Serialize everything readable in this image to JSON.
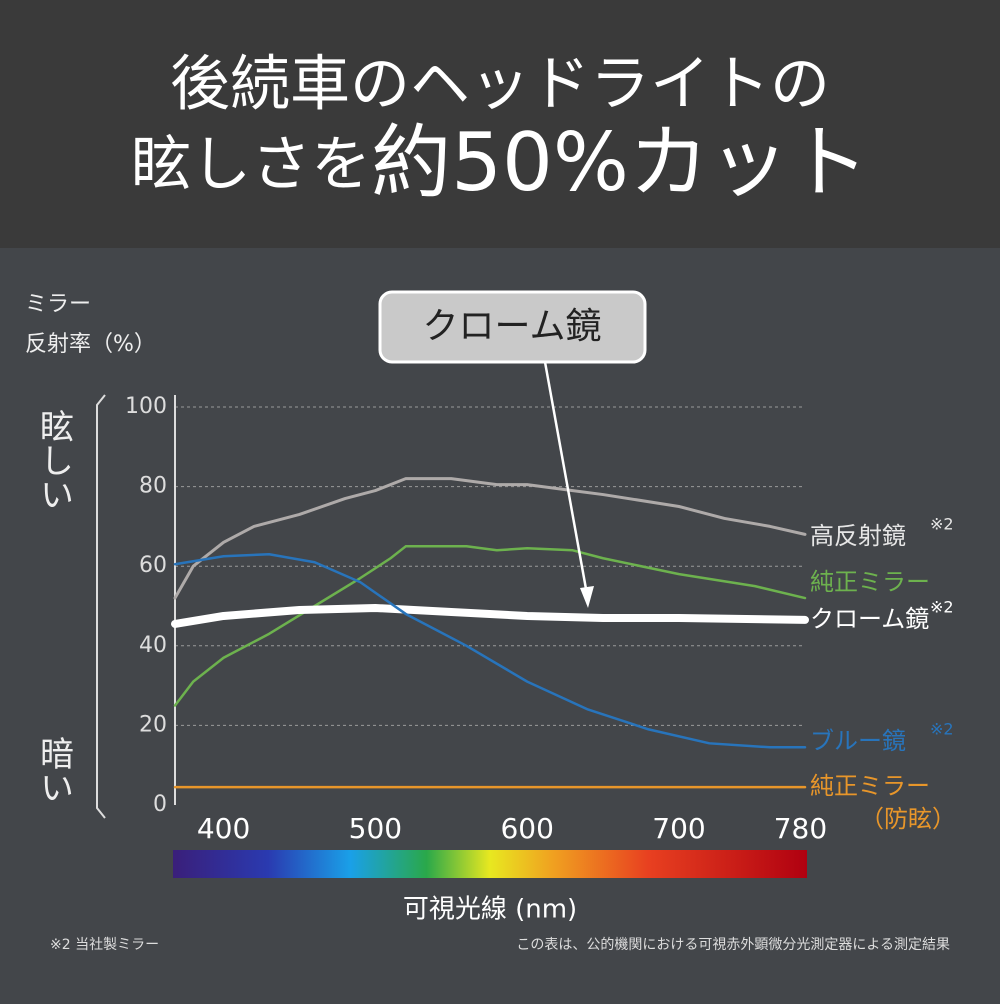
{
  "header": {
    "line1": "後続車のヘッドライトの",
    "line2a": "眩しさを",
    "line2b": "約50%カット"
  },
  "chart_data": {
    "type": "line",
    "y_label_line1": "ミラー",
    "y_label_line2": "反射率（%）",
    "side_top": "眩しい",
    "side_bottom": "暗い",
    "x_label": "可視光線 (nm)",
    "callout": "クローム鏡",
    "xlim": [
      368,
      783
    ],
    "xticks": [
      400,
      500,
      600,
      700,
      780
    ],
    "ylim": [
      0,
      100
    ],
    "yticks": [
      0,
      20,
      40,
      60,
      80,
      100
    ],
    "grid": true,
    "series": [
      {
        "name": "高反射鏡",
        "note": "※2",
        "color": "#aeaaa9",
        "width": 3,
        "x": [
          368,
          380,
          400,
          420,
          450,
          480,
          500,
          520,
          550,
          580,
          600,
          630,
          650,
          700,
          730,
          760,
          783
        ],
        "values": [
          52,
          60,
          66,
          70,
          73,
          77,
          79,
          82,
          82,
          80.5,
          80.5,
          79,
          78,
          75,
          72,
          70,
          68
        ]
      },
      {
        "name": "純正ミラー",
        "note": "",
        "color": "#6db24e",
        "width": 2.5,
        "x": [
          368,
          380,
          400,
          430,
          460,
          490,
          510,
          520,
          560,
          580,
          600,
          630,
          650,
          700,
          750,
          783
        ],
        "values": [
          25,
          31,
          37,
          43,
          50,
          57,
          62,
          65,
          65,
          64,
          64.5,
          64,
          62,
          58,
          55,
          52
        ]
      },
      {
        "name": "クローム鏡",
        "note": "※2",
        "color": "#ffffff",
        "width": 8,
        "x": [
          368,
          400,
          450,
          500,
          550,
          600,
          650,
          700,
          783
        ],
        "values": [
          45.5,
          47.5,
          49,
          49.5,
          48.5,
          47.5,
          47,
          47,
          46.5
        ]
      },
      {
        "name": "ブルー鏡",
        "note": "※2",
        "color": "#2874bb",
        "width": 2.5,
        "x": [
          368,
          400,
          430,
          460,
          490,
          520,
          560,
          600,
          640,
          680,
          720,
          760,
          783
        ],
        "values": [
          60.5,
          62.5,
          63,
          61,
          56,
          48,
          40,
          31,
          24,
          19,
          15.5,
          14.5,
          14.5
        ]
      },
      {
        "name": "純正ミラー",
        "note": "（防眩）",
        "color": "#e8962a",
        "width": 2.5,
        "x": [
          368,
          783
        ],
        "values": [
          4.5,
          4.5
        ]
      }
    ]
  },
  "footer": {
    "left": "※2 当社製ミラー",
    "right": "この表は、公的機関における可視赤外顕微分光測定器による測定結果"
  }
}
